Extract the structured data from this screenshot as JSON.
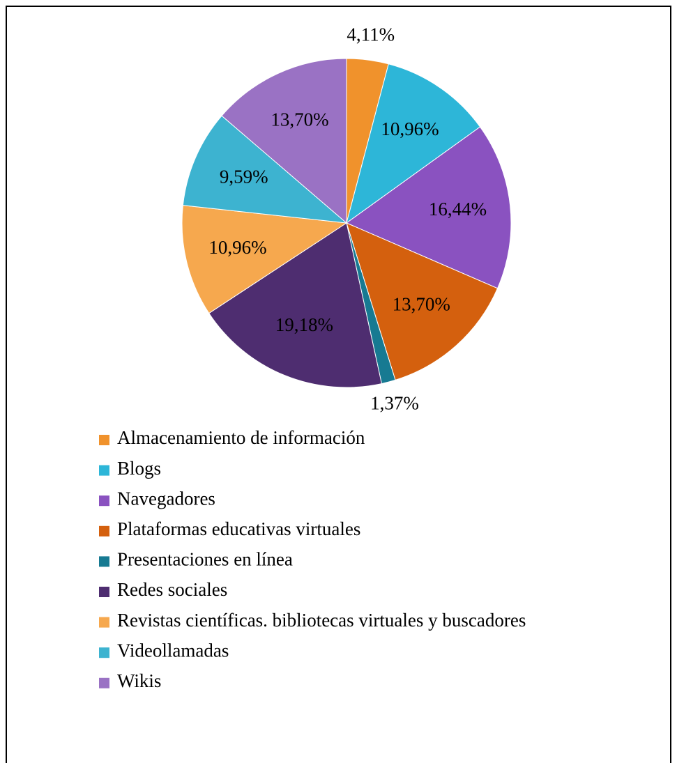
{
  "chart_data": {
    "type": "pie",
    "categories": [
      "Almacenamiento de información",
      "Blogs",
      "Navegadores",
      "Plataformas educativas virtuales",
      "Presentaciones en línea",
      "Redes sociales",
      "Revistas científicas. bibliotecas virtuales y buscadores",
      "Videollamadas",
      "Wikis"
    ],
    "values": [
      4.11,
      10.96,
      16.44,
      13.7,
      1.37,
      19.18,
      10.96,
      9.59,
      13.7
    ],
    "value_labels": [
      "4,11%",
      "10,96%",
      "16,44%",
      "13,70%",
      "1,37%",
      "19,18%",
      "10,96%",
      "9,59%",
      "13,70%"
    ],
    "colors": [
      "#f0922c",
      "#2db6d8",
      "#8a52c0",
      "#d4600e",
      "#177a92",
      "#4e2d70",
      "#f6a84e",
      "#3db3d0",
      "#9a72c4"
    ],
    "legend": "bottom"
  }
}
